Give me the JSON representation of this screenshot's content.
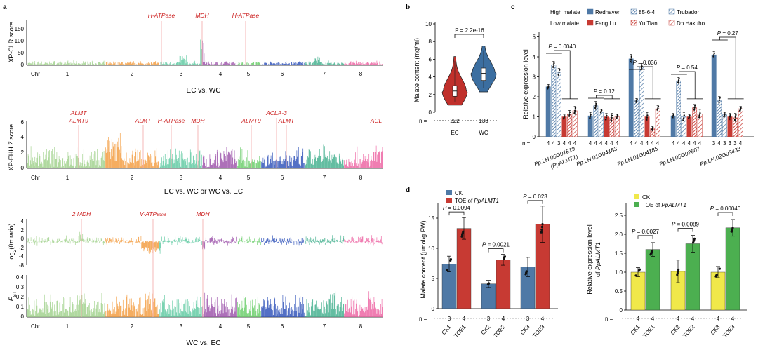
{
  "colors": {
    "chr_palette": [
      "#9fd08a",
      "#f39a3c",
      "#5cc9a0",
      "#9a4fa8",
      "#66cc66",
      "#2b4fb8",
      "#3fae8c",
      "#ec5fa0"
    ],
    "signal_line": "#f4b0b0",
    "gene_label": "#cc2222",
    "ec_violin": "#c0302b",
    "wc_violin": "#3b6ea0",
    "high_malate": "#4f79a6",
    "low_malate": "#c73a33",
    "ck_d_left": "#4f79a6",
    "toe_d_left": "#c73a33",
    "ck_d_right": "#f0e84a",
    "toe_d_right": "#4caf50"
  },
  "panel_a": {
    "label": "a",
    "chr_prefix": "Chr",
    "chromosomes": [
      "1",
      "2",
      "3",
      "4",
      "5",
      "6",
      "7",
      "8"
    ],
    "sub1": {
      "ylabel": "XP-CLR score",
      "yticks": [
        "0",
        "50",
        "100",
        "150"
      ],
      "caption": "EC vs. WC",
      "genes": [
        "H-ATPase",
        "MDH",
        "H-ATPase"
      ]
    },
    "sub2": {
      "ylabel": "XP-EHH Z score",
      "yticks": [
        "0",
        "2",
        "4",
        "6"
      ],
      "caption": "EC vs. WC or WC vs. EC",
      "genes": [
        "ALMT",
        "ALMT9",
        "ALMT",
        "H-ATPase",
        "MDH",
        "ALMT9",
        "ACLA-3",
        "ALMT",
        "ACL"
      ]
    },
    "sub3": {
      "ylabel_pre": "log",
      "ylabel_sub": "2",
      "ylabel_post": "(θπ ratio)",
      "yticks": [
        "4",
        "2",
        "0",
        "-2",
        "-4",
        "-8"
      ],
      "genes": [
        "2 MDH",
        "V-ATPase",
        "MDH"
      ]
    },
    "sub4": {
      "ylabel_pre": "F",
      "ylabel_sub": "ST",
      "yticks": [
        "0",
        "0.1",
        "0.2",
        "0.3",
        "0.4"
      ],
      "caption": "WC vs. EC"
    }
  },
  "panel_b": {
    "label": "b",
    "pvalue": "P = 2.2e-16",
    "ylabel": "Malate content (mg/ml)",
    "yticks": [
      "0",
      "2",
      "4",
      "6",
      "8",
      "10"
    ],
    "n_label": "n =",
    "chart_data": {
      "type": "violin",
      "categories": [
        "EC",
        "WC"
      ],
      "n": [
        "222",
        "133"
      ],
      "ylim": [
        0,
        10
      ],
      "median": [
        2.4,
        4.4
      ],
      "q1": [
        1.8,
        3.6
      ],
      "q3": [
        3.0,
        5.0
      ],
      "min": [
        0.8,
        2.3
      ],
      "max": [
        6.3,
        7.5
      ]
    }
  },
  "panel_c": {
    "label": "c",
    "legend": {
      "high_label": "High malate",
      "low_label": "Low malate",
      "high_items": [
        "Redhaven",
        "85-6-4",
        "Trubador"
      ],
      "low_items": [
        "Feng Lu",
        "Yu Tian",
        "Do Hakuho"
      ]
    },
    "ylabel": "Relative expression level",
    "yticks": [
      "0",
      "1",
      "2",
      "3",
      "4",
      "5"
    ],
    "n_label": "n =",
    "groups": [
      {
        "gene": "Pp.LH.06G01819",
        "gene2": "(PpALMT1)",
        "pvalue": "P = 0.0040",
        "n": [
          "4",
          "4",
          "3",
          "4",
          "4",
          "4"
        ]
      },
      {
        "gene": "Pp.LH.01G04183",
        "pvalue": "P = 0.12",
        "n": [
          "4",
          "4",
          "4",
          "4",
          "4",
          "4"
        ]
      },
      {
        "gene": "Pp.LH.01G04185",
        "pvalue": "P = 0.036",
        "n": [
          "4",
          "4",
          "4",
          "4",
          "4",
          "4"
        ]
      },
      {
        "gene": "Pp.LH.05G02607",
        "pvalue": "P = 0.54",
        "n": [
          "4",
          "4",
          "4",
          "4",
          "4",
          "4"
        ]
      },
      {
        "gene": "Pp.LH.02G03438",
        "pvalue": "P = 0.27",
        "n": [
          "3",
          "4",
          "3",
          "3",
          "3",
          "4"
        ]
      }
    ],
    "chart_data": {
      "type": "bar",
      "categories": [
        "Pp.LH.06G01819",
        "Pp.LH.01G04183",
        "Pp.LH.01G04185",
        "Pp.LH.05G02607",
        "Pp.LH.02G03438"
      ],
      "ylim": [
        0,
        5
      ],
      "series": [
        {
          "name": "Redhaven",
          "values": [
            2.5,
            1.05,
            3.9,
            1.05,
            4.1
          ]
        },
        {
          "name": "85-6-4",
          "values": [
            3.6,
            1.55,
            1.8,
            2.8,
            1.8
          ]
        },
        {
          "name": "Trubador",
          "values": [
            3.2,
            1.25,
            3.5,
            1.0,
            1.1
          ]
        },
        {
          "name": "Feng Lu",
          "values": [
            1.0,
            1.0,
            1.0,
            1.0,
            1.0
          ]
        },
        {
          "name": "Yu Tian",
          "values": [
            1.15,
            0.95,
            0.4,
            1.45,
            0.95
          ]
        },
        {
          "name": "Do Hakuho",
          "values": [
            1.3,
            1.0,
            1.4,
            1.15,
            1.4
          ]
        }
      ]
    }
  },
  "panel_d": {
    "label": "d",
    "left": {
      "legend": [
        "CK",
        "TOE of ",
        "PpALMT1"
      ],
      "ylabel": "Malate content (μmol/g FW)",
      "yticks": [
        "0",
        "5",
        "10",
        "15"
      ],
      "pvalues": [
        "P = 0.0094",
        "P = 0.0021",
        "P = 0.023"
      ],
      "n_label": "n =",
      "n": [
        "3",
        "4",
        "3",
        "4",
        "3",
        "4"
      ],
      "chart_data": {
        "type": "bar",
        "categories": [
          "CK1",
          "TOE1",
          "CK2",
          "TOE2",
          "CK3",
          "TOE3"
        ],
        "values": [
          7.4,
          13.3,
          4.1,
          8.1,
          6.9,
          14.0
        ],
        "errors": [
          1.3,
          1.8,
          0.6,
          0.9,
          1.6,
          3.0
        ],
        "ylim": [
          0,
          18
        ]
      }
    },
    "right": {
      "legend": [
        "CK",
        "TOE of ",
        "PpALMT1"
      ],
      "ylabel1": "Relative expression level",
      "ylabel2_pre": "of ",
      "ylabel2_gene": "PpALMT1",
      "yticks": [
        "0",
        "0.5",
        "1.0",
        "1.5",
        "2.0",
        "2.5"
      ],
      "pvalues": [
        "P = 0.0027",
        "P = 0.0089",
        "P = 0.00040"
      ],
      "n_label": "n =",
      "n": [
        "4",
        "4",
        "4",
        "4",
        "4",
        "4"
      ],
      "chart_data": {
        "type": "bar",
        "categories": [
          "CK1",
          "TOE1",
          "CK2",
          "TOE2",
          "CK3",
          "TOE3"
        ],
        "values": [
          1.0,
          1.6,
          1.02,
          1.75,
          1.0,
          2.17
        ],
        "errors": [
          0.12,
          0.18,
          0.3,
          0.22,
          0.15,
          0.22
        ],
        "ylim": [
          0,
          2.8
        ]
      }
    }
  }
}
